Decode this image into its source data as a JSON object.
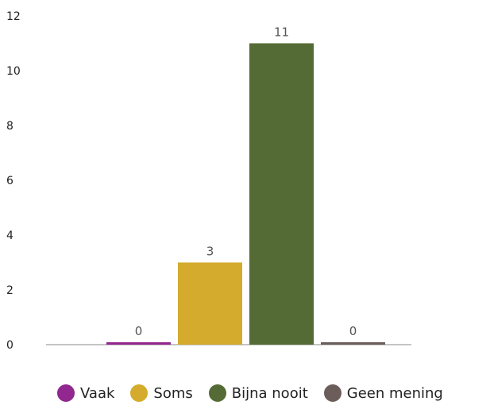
{
  "chart_data": {
    "type": "bar",
    "categories": [
      "Vaak",
      "Soms",
      "Bijna nooit",
      "Geen mening"
    ],
    "values": [
      0,
      3,
      11,
      0
    ],
    "value_labels": [
      "0",
      "3",
      "11",
      "0"
    ],
    "ylim": [
      0,
      12
    ],
    "yticks": [
      "0",
      "2",
      "4",
      "6",
      "8",
      "10",
      "12"
    ],
    "grid": false,
    "legend_position": "bottom",
    "colors": [
      "#92278f",
      "#d4ab2c",
      "#556b35",
      "#6b5d5a"
    ],
    "title": "",
    "xlabel": "",
    "ylabel": ""
  },
  "legend": [
    {
      "label": "Vaak",
      "color": "#92278f"
    },
    {
      "label": "Soms",
      "color": "#d4ab2c"
    },
    {
      "label": "Bijna nooit",
      "color": "#556b35"
    },
    {
      "label": "Geen mening",
      "color": "#6b5d5a"
    }
  ]
}
